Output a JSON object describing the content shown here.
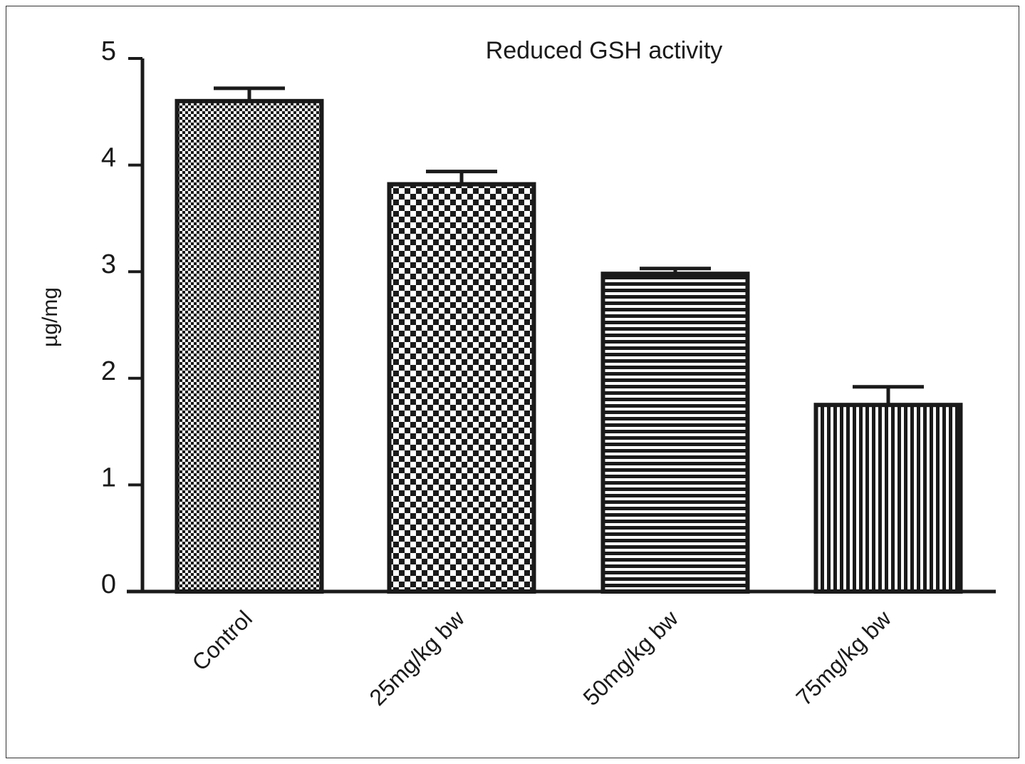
{
  "chart_data": {
    "type": "bar",
    "title": "Reduced GSH activity",
    "xlabel": "",
    "ylabel": "µg/mg",
    "ylim": [
      0,
      5
    ],
    "yticks": [
      "0",
      "1",
      "2",
      "3",
      "4",
      "5"
    ],
    "categories": [
      "Control",
      "25mg/kg bw",
      "50mg/kg bw",
      "75mg/kg bw"
    ],
    "values": [
      4.6,
      3.82,
      2.98,
      1.75
    ],
    "errors": [
      0.12,
      0.12,
      0.05,
      0.17
    ],
    "patterns": [
      "fine-checker",
      "checker",
      "horizontal-stripes",
      "vertical-stripes"
    ],
    "grid": false,
    "legend": "none"
  },
  "colors": {
    "bar_outline": "#1a1a1a",
    "axis": "#1a1a1a",
    "background": "#ffffff"
  }
}
